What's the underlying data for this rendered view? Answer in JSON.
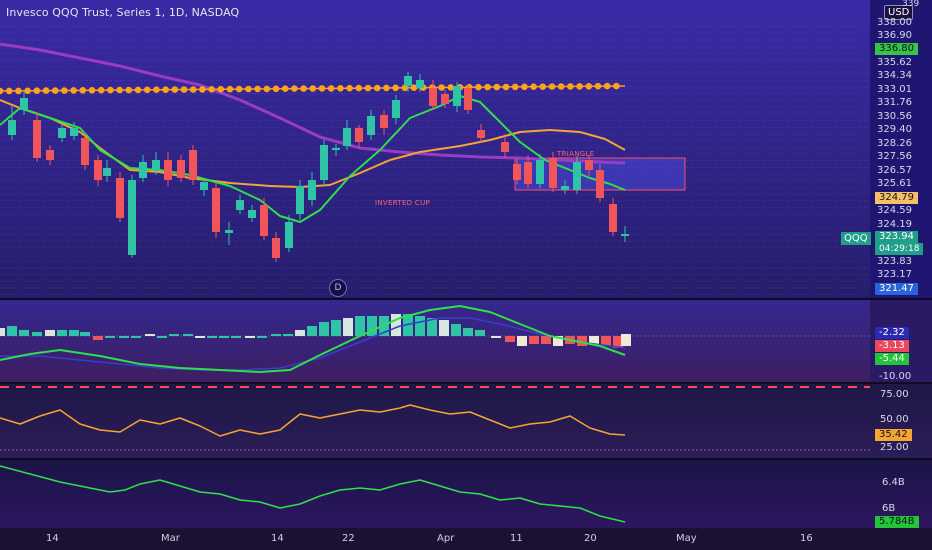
{
  "header": {
    "title": "Invesco QQQ Trust, Series 1, 1D, NASDAQ",
    "currency_button": "USD"
  },
  "price_axis": {
    "labels": [
      "338.00",
      "336.90",
      "335.62",
      "334.34",
      "333.01",
      "331.76",
      "330.56",
      "329.40",
      "328.26",
      "327.56",
      "326.57",
      "325.61",
      "324.59",
      "324.19",
      "323.83",
      "323.17",
      "321.47"
    ],
    "top_partial": "339",
    "tag_green": "336.80",
    "tag_orange": "324.79",
    "tag_price": "323.94",
    "tag_countdown": "04:29:18"
  },
  "symbol_tag": "QQQ",
  "annotations": {
    "triangle": "TRIANGLE",
    "inverted_cup": "INVERTED CUP"
  },
  "d_badge": "D",
  "macd_axis": {
    "tag1": "-2.32",
    "tag2": "-3.13",
    "tag3": "-5.44",
    "label": "-10.00"
  },
  "rsi_axis": {
    "label_top": "75.00",
    "label_mid": "50.00",
    "tag": "35.42",
    "label_bottom": "25.00"
  },
  "volume_axis": {
    "label_top": "6.4B",
    "label_mid": "6B",
    "tag": "5.784B"
  },
  "time_axis": {
    "labels": [
      "14",
      "Mar",
      "14",
      "22",
      "Apr",
      "11",
      "20",
      "May",
      "16"
    ]
  },
  "colors": {
    "background": "#1c1436",
    "bull": "#2ec4a5",
    "bear": "#f0555a",
    "ma_green": "#2ee04a",
    "ma_orange": "#f5a533",
    "ma_purple": "#9a3bc4",
    "dots": "#ffa31a"
  }
}
